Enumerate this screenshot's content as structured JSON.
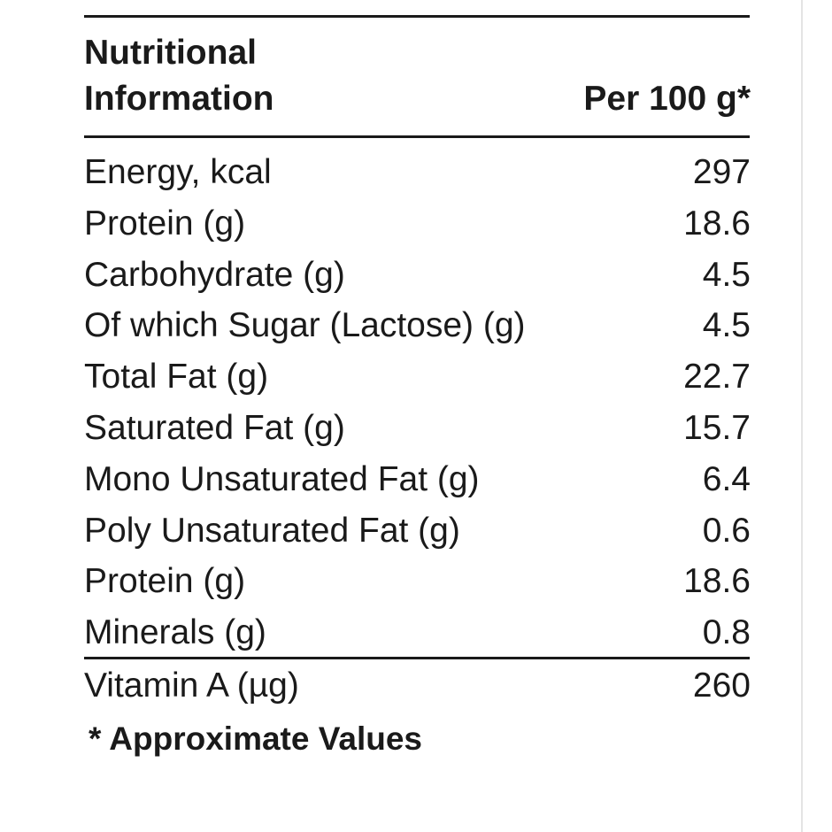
{
  "header": {
    "title": [
      "Nutritional",
      "Information"
    ],
    "column": "Per 100 g*"
  },
  "table": {
    "rows": [
      [
        "Energy, kcal",
        "297"
      ],
      [
        "Protein (g)",
        "18.6"
      ],
      [
        "Carbohydrate (g)",
        "4.5"
      ],
      [
        "Of which Sugar (Lactose) (g)",
        "4.5"
      ],
      [
        "Total Fat (g)",
        "22.7"
      ],
      [
        "Saturated Fat (g)",
        "15.7"
      ],
      [
        "Mono Unsaturated Fat (g)",
        "6.4"
      ],
      [
        "Poly Unsaturated Fat (g)",
        "0.6"
      ],
      [
        "Protein (g)",
        "18.6"
      ],
      [
        "Minerals (g)",
        "0.8"
      ]
    ],
    "footer_row": [
      "Vitamin A (µg)",
      "260"
    ]
  },
  "footnote": "* Approximate Values"
}
